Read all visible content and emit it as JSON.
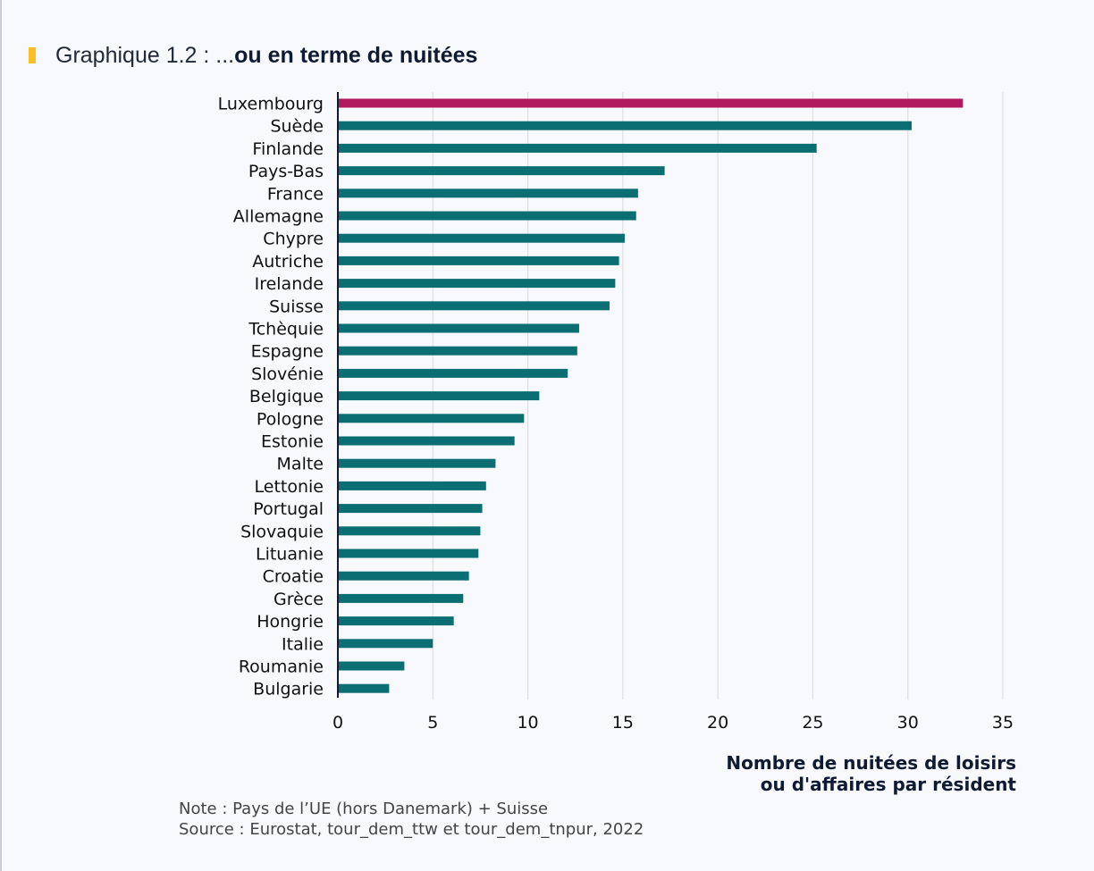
{
  "title": {
    "prefix": "Graphique 1.2 : ...",
    "emphasis": "ou en terme de nuitées",
    "marker_color": "#fbbf24"
  },
  "notes": {
    "note": "Note : Pays de l’UE (hors Danemark) + Suisse",
    "source": "Source : Eurostat, tour_dem_ttw et tour_dem_tnpur, 2022"
  },
  "chart_data": {
    "type": "bar",
    "orientation": "horizontal",
    "title": "Graphique 1.2 : ...ou en terme de nuitées",
    "xlabel_line1": "Nombre de nuitées de loisirs",
    "xlabel_line2": "ou d'affaires par résident",
    "xlabel": "Nombre de nuitées de loisirs ou d'affaires par résident",
    "ylabel": "",
    "xlim": [
      0,
      35
    ],
    "xticks": [
      0,
      5,
      10,
      15,
      20,
      25,
      30,
      35
    ],
    "grid": true,
    "legend": "none",
    "colors": {
      "default": "#0b6e73",
      "highlight": "#b0195e",
      "axis": "#0f1b33",
      "grid": "#dcdfe3"
    },
    "highlight": "Luxembourg",
    "categories": [
      "Luxembourg",
      "Suède",
      "Finlande",
      "Pays-Bas",
      "France",
      "Allemagne",
      "Chypre",
      "Autriche",
      "Irelande",
      "Suisse",
      "Tchèquie",
      "Espagne",
      "Slovénie",
      "Belgique",
      "Pologne",
      "Estonie",
      "Malte",
      "Lettonie",
      "Portugal",
      "Slovaquie",
      "Lituanie",
      "Croatie",
      "Grèce",
      "Hongrie",
      "Italie",
      "Roumanie",
      "Bulgarie"
    ],
    "values": [
      32.9,
      30.2,
      25.2,
      17.2,
      15.8,
      15.7,
      15.1,
      14.8,
      14.6,
      14.3,
      12.7,
      12.6,
      12.1,
      10.6,
      9.8,
      9.3,
      8.3,
      7.8,
      7.6,
      7.5,
      7.4,
      6.9,
      6.6,
      6.1,
      5.0,
      3.5,
      2.7
    ]
  }
}
